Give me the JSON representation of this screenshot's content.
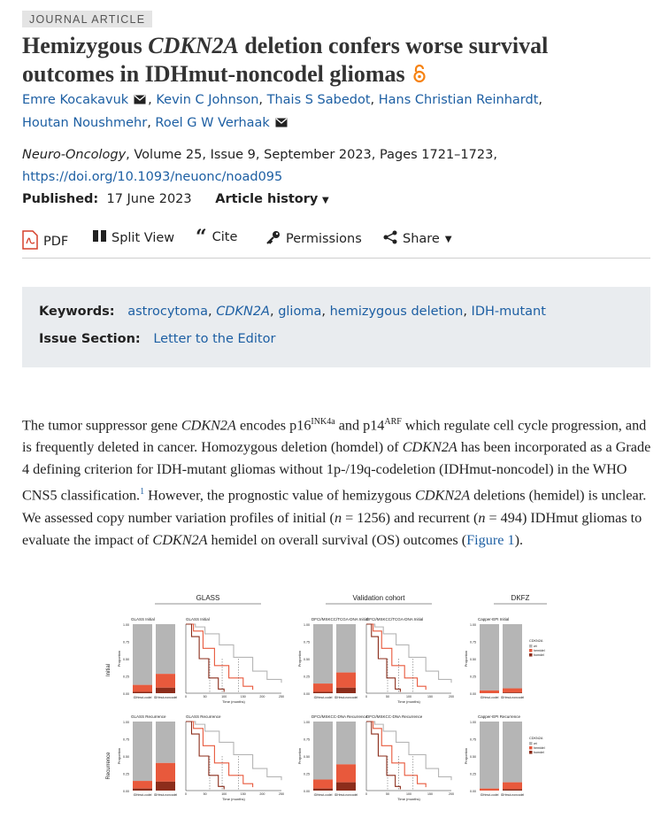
{
  "badge": "JOURNAL ARTICLE",
  "title_pre": "Hemizygous ",
  "title_gene": "CDKN2A",
  "title_post": " deletion confers worse survival outcomes in IDHmut-noncodel gliomas",
  "authors": [
    "Emre Kocakavuk",
    "Kevin C Johnson",
    "Thais S Sabedot",
    "Hans Christian Reinhardt",
    "Houtan Noushmehr",
    "Roel G W Verhaak"
  ],
  "journal": {
    "name": "Neuro-Oncology",
    "details": ", Volume 25, Issue 9, September 2023, Pages 1721–1723,",
    "doi": "https://doi.org/10.1093/neuonc/noad095"
  },
  "published_label": "Published:",
  "published_date": "17 June 2023",
  "article_history": "Article history",
  "toolbar": {
    "pdf": "PDF",
    "split_view": "Split View",
    "cite": "Cite",
    "permissions": "Permissions",
    "share": "Share"
  },
  "keywords_label": "Keywords:",
  "keywords": [
    "astrocytoma",
    "CDKN2A",
    "glioma",
    "hemizygous deletion",
    "IDH-mutant"
  ],
  "issue_section_label": "Issue Section:",
  "issue_section": "Letter to the Editor",
  "paragraph": {
    "s1": "The tumor suppressor gene ",
    "g1": "CDKN2A",
    "s2": " encodes p16",
    "sup1": "INK4a",
    "s3": " and p14",
    "sup2": "ARF",
    "s4": " which regulate cell cycle progression, and is frequently deleted in cancer. Homozygous deletion (homdel) of ",
    "g2": "CDKN2A",
    "s5": " has been incorporated as a Grade 4 defining criterion for IDH-mutant gliomas without 1p-/19q-codeletion (IDHmut-noncodel) in the WHO CNS5 classification.",
    "sup3": "1",
    "s6": " However, the prognostic value of hemizygous ",
    "g3": "CDKN2A",
    "s7": " deletions (hemidel) is unclear. We assessed copy number variation profiles of initial (",
    "n1": "n",
    "s8": " = 1256) and recurrent (",
    "n2": "n",
    "s9": " = 494) IDHmut gliomas to evaluate the impact of ",
    "g4": "CDKN2A",
    "s10": " hemidel on overall survival (OS) outcomes (",
    "figlink": "Figure 1",
    "s11": ")."
  },
  "figure": {
    "col_titles": [
      "GLASS",
      "Validation cohort",
      "DKFZ"
    ],
    "row_labels": [
      "Initial",
      "Recurrence"
    ],
    "panel_titles": {
      "glass_initial": "GLASS Initial",
      "glass_recurrence": "GLASS Recurrence",
      "val_initial": "DFCI/MSKCC/TCGA-DNA Initial",
      "val_recurrence": "DFCI/MSKCC-DNA Recurrence",
      "dkfz_initial": "Capper-EPI Initial",
      "dkfz_recurrence": "Capper-EPI Recurrence"
    },
    "legend_title": "CDKN2A",
    "legend_items": [
      "wt",
      "hemidel",
      "homdel"
    ],
    "bar_xlabels": [
      "IDHmut-codel",
      "IDHmut-noncodel"
    ],
    "ylabel_bar": "Proportion",
    "ylabel_km": "Overall survival probability",
    "xlabel_km": "Time (months)",
    "y_ticks": [
      "1.00",
      "0.75",
      "0.50",
      "0.25",
      "0.00"
    ],
    "x_ticks": [
      "0",
      "50",
      "100",
      "150",
      "200",
      "250"
    ],
    "colors": {
      "wt": "#b5b5b5",
      "hemidel": "#e8593c",
      "homdel": "#8c2d1b"
    }
  }
}
